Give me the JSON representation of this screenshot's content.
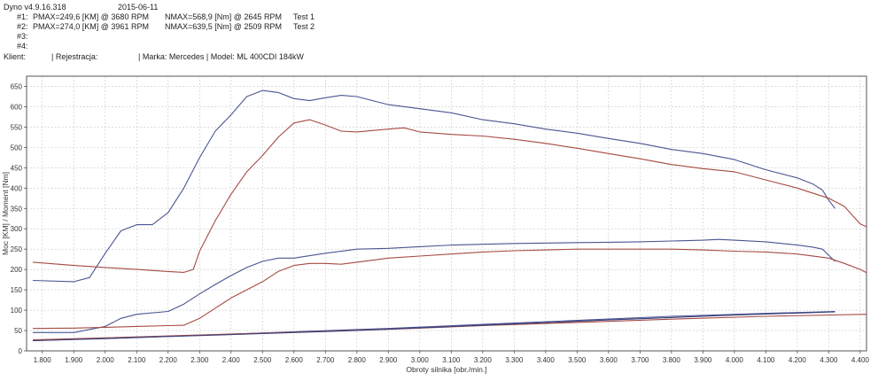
{
  "header": {
    "app_version": "Dyno v4.9.16.318",
    "date": "2015-06-11",
    "tests": [
      {
        "id": "#1:",
        "pmax": "PMAX=249,6 [KM] @ 3680 RPM",
        "nmax": "NMAX=568,9 [Nm] @ 2645 RPM",
        "name": "Test 1"
      },
      {
        "id": "#2:",
        "pmax": "PMAX=274,0 [KM] @ 3961 RPM",
        "nmax": "NMAX=639,5 [Nm] @ 2509 RPM",
        "name": "Test 2"
      },
      {
        "id": "#3:",
        "pmax": "",
        "nmax": "",
        "name": ""
      },
      {
        "id": "#4:",
        "pmax": "",
        "nmax": "",
        "name": ""
      }
    ],
    "client_label": "Klient:",
    "registration": "| Rejestracja:",
    "vehicle": "| Marka: Mercedes | Model: ML 400CDI 184kW"
  },
  "chart_data": {
    "type": "line",
    "xlabel": "Obroty silnika [obr./min.]",
    "ylabel": "Moc [KM] / Moment [Nm]",
    "xlim": [
      1750,
      4420
    ],
    "ylim": [
      0,
      675
    ],
    "xticks": [
      1800,
      1900,
      2000,
      2100,
      2200,
      2300,
      2400,
      2500,
      2600,
      2700,
      2800,
      2900,
      3000,
      3100,
      3200,
      3300,
      3400,
      3500,
      3600,
      3700,
      3800,
      3900,
      4000,
      4100,
      4200,
      4300,
      4400
    ],
    "xtick_labels": [
      "1.800",
      "1.900",
      "2.000",
      "2.100",
      "2.200",
      "2.300",
      "2.400",
      "2.500",
      "2.600",
      "2.700",
      "2.800",
      "2.900",
      "3.000",
      "3.100",
      "3.200",
      "3.300",
      "3.400",
      "3.500",
      "3.600",
      "3.700",
      "3.800",
      "3.900",
      "4.000",
      "4.100",
      "4.200",
      "4.300",
      "4.400"
    ],
    "yticks": [
      0,
      50,
      100,
      150,
      200,
      250,
      300,
      350,
      400,
      450,
      500,
      550,
      600,
      650
    ],
    "ytick_labels": [
      "0",
      "50",
      "100",
      "150",
      "200",
      "250",
      "300",
      "350",
      "400",
      "450",
      "500",
      "550",
      "600",
      "650"
    ],
    "grid": true,
    "series": [
      {
        "color": "#4a5590",
        "points": [
          [
            1770,
            173
          ],
          [
            1900,
            170
          ],
          [
            1950,
            180
          ],
          [
            2000,
            240
          ],
          [
            2050,
            295
          ],
          [
            2100,
            310
          ],
          [
            2150,
            310
          ],
          [
            2200,
            340
          ],
          [
            2250,
            400
          ],
          [
            2300,
            475
          ],
          [
            2350,
            540
          ],
          [
            2400,
            580
          ],
          [
            2450,
            625
          ],
          [
            2500,
            640
          ],
          [
            2550,
            635
          ],
          [
            2600,
            620
          ],
          [
            2650,
            615
          ],
          [
            2700,
            622
          ],
          [
            2750,
            628
          ],
          [
            2800,
            625
          ],
          [
            2900,
            605
          ],
          [
            3000,
            595
          ],
          [
            3100,
            585
          ],
          [
            3200,
            568
          ],
          [
            3300,
            558
          ],
          [
            3400,
            545
          ],
          [
            3500,
            535
          ],
          [
            3600,
            522
          ],
          [
            3700,
            510
          ],
          [
            3800,
            495
          ],
          [
            3900,
            485
          ],
          [
            4000,
            470
          ],
          [
            4100,
            445
          ],
          [
            4200,
            425
          ],
          [
            4250,
            410
          ],
          [
            4280,
            395
          ],
          [
            4300,
            370
          ],
          [
            4320,
            350
          ]
        ]
      },
      {
        "color": "#a54a42",
        "points": [
          [
            1770,
            218
          ],
          [
            1900,
            210
          ],
          [
            2000,
            205
          ],
          [
            2100,
            200
          ],
          [
            2200,
            195
          ],
          [
            2250,
            193
          ],
          [
            2280,
            200
          ],
          [
            2300,
            245
          ],
          [
            2350,
            320
          ],
          [
            2400,
            385
          ],
          [
            2450,
            440
          ],
          [
            2500,
            480
          ],
          [
            2550,
            525
          ],
          [
            2600,
            560
          ],
          [
            2650,
            568
          ],
          [
            2700,
            555
          ],
          [
            2750,
            540
          ],
          [
            2800,
            538
          ],
          [
            2900,
            545
          ],
          [
            2950,
            548
          ],
          [
            3000,
            538
          ],
          [
            3100,
            532
          ],
          [
            3200,
            528
          ],
          [
            3300,
            520
          ],
          [
            3400,
            510
          ],
          [
            3500,
            498
          ],
          [
            3600,
            485
          ],
          [
            3700,
            472
          ],
          [
            3800,
            458
          ],
          [
            3900,
            448
          ],
          [
            4000,
            440
          ],
          [
            4100,
            420
          ],
          [
            4200,
            400
          ],
          [
            4300,
            375
          ],
          [
            4350,
            355
          ],
          [
            4400,
            312
          ],
          [
            4420,
            305
          ]
        ]
      },
      {
        "color": "#4a5590",
        "points": [
          [
            1770,
            45
          ],
          [
            1900,
            45
          ],
          [
            2000,
            60
          ],
          [
            2050,
            80
          ],
          [
            2100,
            90
          ],
          [
            2200,
            97
          ],
          [
            2250,
            115
          ],
          [
            2300,
            140
          ],
          [
            2350,
            163
          ],
          [
            2400,
            185
          ],
          [
            2450,
            205
          ],
          [
            2500,
            220
          ],
          [
            2550,
            228
          ],
          [
            2600,
            228
          ],
          [
            2700,
            240
          ],
          [
            2800,
            250
          ],
          [
            2900,
            252
          ],
          [
            3000,
            256
          ],
          [
            3100,
            260
          ],
          [
            3200,
            262
          ],
          [
            3300,
            264
          ],
          [
            3400,
            265
          ],
          [
            3500,
            266
          ],
          [
            3600,
            267
          ],
          [
            3700,
            268
          ],
          [
            3800,
            270
          ],
          [
            3900,
            272
          ],
          [
            3950,
            274
          ],
          [
            4000,
            272
          ],
          [
            4100,
            268
          ],
          [
            4200,
            260
          ],
          [
            4250,
            255
          ],
          [
            4280,
            250
          ],
          [
            4300,
            235
          ],
          [
            4320,
            220
          ]
        ]
      },
      {
        "color": "#a54a42",
        "points": [
          [
            1770,
            55
          ],
          [
            1900,
            56
          ],
          [
            2000,
            58
          ],
          [
            2100,
            60
          ],
          [
            2200,
            62
          ],
          [
            2250,
            63
          ],
          [
            2300,
            80
          ],
          [
            2350,
            105
          ],
          [
            2400,
            130
          ],
          [
            2450,
            150
          ],
          [
            2500,
            170
          ],
          [
            2550,
            195
          ],
          [
            2600,
            210
          ],
          [
            2650,
            215
          ],
          [
            2700,
            215
          ],
          [
            2750,
            213
          ],
          [
            2800,
            218
          ],
          [
            2900,
            228
          ],
          [
            3000,
            233
          ],
          [
            3100,
            238
          ],
          [
            3200,
            243
          ],
          [
            3300,
            246
          ],
          [
            3400,
            248
          ],
          [
            3500,
            250
          ],
          [
            3600,
            250
          ],
          [
            3700,
            250
          ],
          [
            3800,
            250
          ],
          [
            3900,
            248
          ],
          [
            4000,
            245
          ],
          [
            4100,
            243
          ],
          [
            4200,
            238
          ],
          [
            4300,
            228
          ],
          [
            4350,
            215
          ],
          [
            4400,
            200
          ],
          [
            4420,
            192
          ]
        ]
      },
      {
        "color": "#4a5590",
        "points": [
          [
            1770,
            25
          ],
          [
            2000,
            30
          ],
          [
            2300,
            38
          ],
          [
            2600,
            47
          ],
          [
            2900,
            55
          ],
          [
            3200,
            65
          ],
          [
            3500,
            75
          ],
          [
            3800,
            85
          ],
          [
            4100,
            92
          ],
          [
            4320,
            97
          ]
        ]
      },
      {
        "color": "#a54a42",
        "points": [
          [
            1770,
            27
          ],
          [
            2000,
            32
          ],
          [
            2300,
            39
          ],
          [
            2600,
            46
          ],
          [
            2900,
            53
          ],
          [
            3200,
            62
          ],
          [
            3500,
            70
          ],
          [
            3800,
            78
          ],
          [
            4100,
            85
          ],
          [
            4420,
            90
          ]
        ]
      },
      {
        "color": "#3a3f7a",
        "points": [
          [
            1770,
            25
          ],
          [
            2100,
            33
          ],
          [
            2400,
            40
          ],
          [
            2800,
            50
          ],
          [
            3200,
            63
          ],
          [
            3600,
            76
          ],
          [
            4000,
            88
          ],
          [
            4320,
            96
          ]
        ]
      }
    ]
  }
}
